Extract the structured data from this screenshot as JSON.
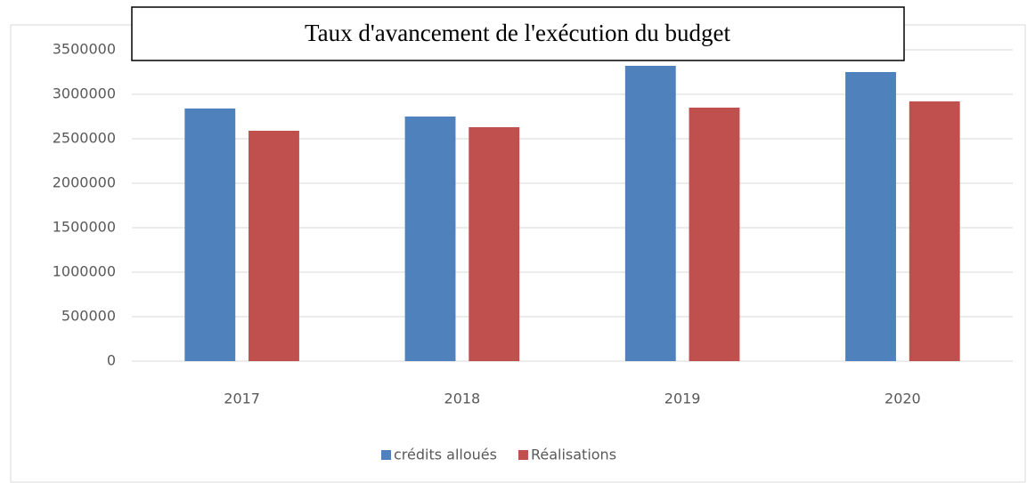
{
  "chart_data": {
    "type": "bar",
    "title": "Taux d'avancement de l'exécution du budget",
    "categories": [
      "2017",
      "2018",
      "2019",
      "2020"
    ],
    "series": [
      {
        "name": "crédits alloués",
        "color": "#4f81bd",
        "values": [
          2840000,
          2750000,
          3320000,
          3250000
        ]
      },
      {
        "name": "Réalisations",
        "color": "#c0504d",
        "values": [
          2590000,
          2630000,
          2850000,
          2920000
        ]
      }
    ],
    "ylim": [
      0,
      3500000
    ],
    "yticks": [
      0,
      500000,
      1000000,
      1500000,
      2000000,
      2500000,
      3000000,
      3500000
    ],
    "grid": true,
    "legend": "bottom"
  }
}
